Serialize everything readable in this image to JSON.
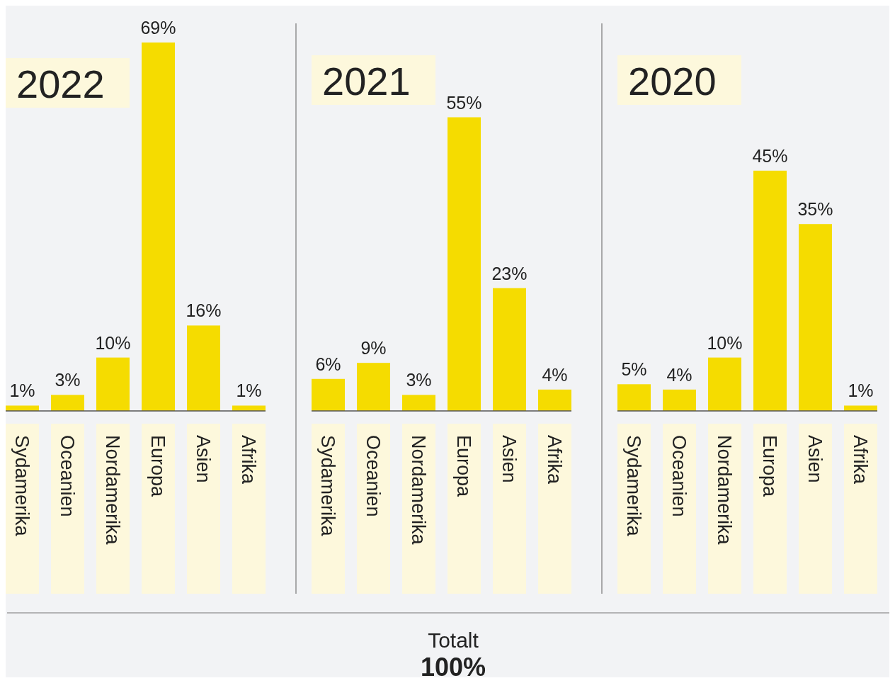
{
  "chart_data": [
    {
      "type": "bar",
      "title": "2022",
      "categories": [
        "Sydamerika",
        "Oceanien",
        "Nordamerika",
        "Europa",
        "Asien",
        "Afrika"
      ],
      "values": [
        1,
        3,
        10,
        69,
        16,
        1
      ],
      "value_labels": [
        "1%",
        "3%",
        "10%",
        "69%",
        "16%",
        "1%"
      ],
      "color": "#f5dc00"
    },
    {
      "type": "bar",
      "title": "2021",
      "categories": [
        "Sydamerika",
        "Oceanien",
        "Nordamerika",
        "Europa",
        "Asien",
        "Afrika"
      ],
      "values": [
        6,
        9,
        3,
        55,
        23,
        4
      ],
      "value_labels": [
        "6%",
        "9%",
        "3%",
        "55%",
        "23%",
        "4%"
      ],
      "color": "#f5dc00",
      "annotations": [
        "Totalt",
        "100%"
      ]
    },
    {
      "type": "bar",
      "title": "2020",
      "categories": [
        "Sydamerika",
        "Oceanien",
        "Nordamerika",
        "Europa",
        "Asien",
        "Afrika"
      ],
      "values": [
        5,
        4,
        10,
        45,
        35,
        1
      ],
      "value_labels": [
        "5%",
        "4%",
        "10%",
        "45%",
        "35%",
        "1%"
      ],
      "color": "#f5dc00"
    }
  ]
}
